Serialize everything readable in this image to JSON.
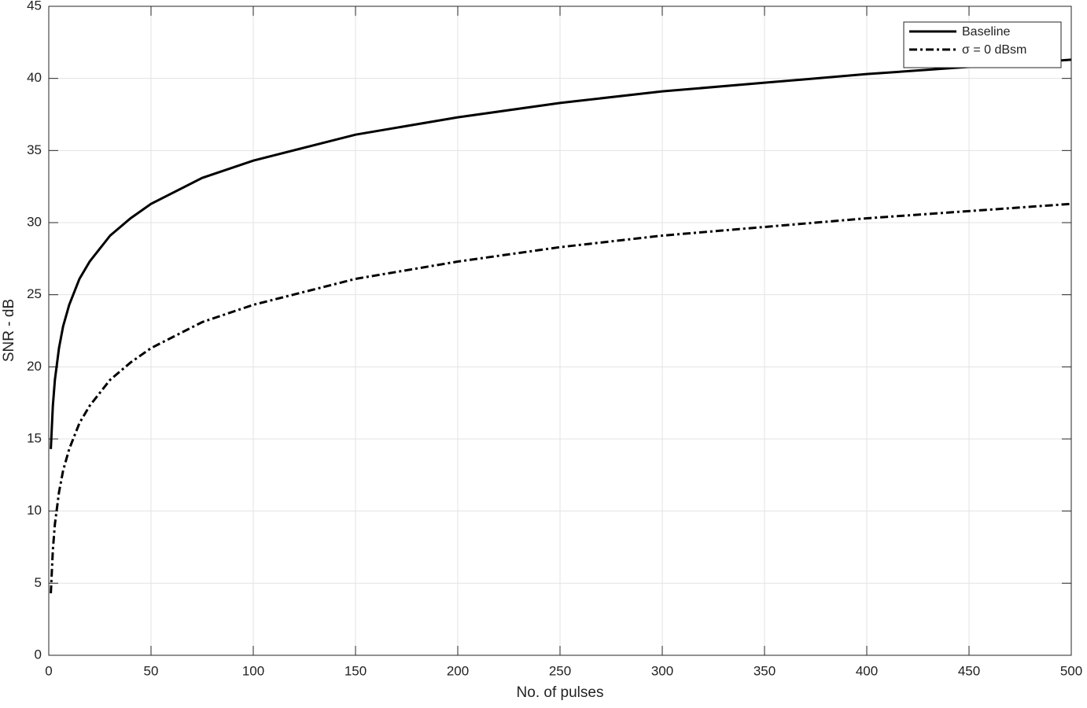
{
  "chart_data": {
    "type": "line",
    "xlabel": "No. of pulses",
    "ylabel": "SNR - dB",
    "x": [
      1,
      2,
      3,
      5,
      7,
      10,
      15,
      20,
      30,
      40,
      50,
      75,
      100,
      150,
      200,
      250,
      300,
      350,
      400,
      450,
      500
    ],
    "series": [
      {
        "name": "Baseline",
        "color": "#000000",
        "dash": "solid",
        "values": [
          14.3,
          17.3,
          19.1,
          21.3,
          22.8,
          24.3,
          26.1,
          27.3,
          29.1,
          30.3,
          31.3,
          33.1,
          34.3,
          36.1,
          37.3,
          38.3,
          39.1,
          39.7,
          40.3,
          40.8,
          41.3
        ]
      },
      {
        "name": "σ = 0 dBsm",
        "color": "#000000",
        "dash": "dashdot",
        "values": [
          4.3,
          7.3,
          9.1,
          11.3,
          12.8,
          14.3,
          16.1,
          17.3,
          19.1,
          20.3,
          21.3,
          23.1,
          24.3,
          26.1,
          27.3,
          28.3,
          29.1,
          29.7,
          30.3,
          30.8,
          31.3
        ]
      }
    ],
    "xlim": [
      0,
      500
    ],
    "xticks": [
      0,
      50,
      100,
      150,
      200,
      250,
      300,
      350,
      400,
      450,
      500
    ],
    "ylim": [
      0,
      45
    ],
    "yticks": [
      0,
      5,
      10,
      15,
      20,
      25,
      30,
      35,
      40,
      45
    ],
    "grid": true,
    "legend": "northeast"
  }
}
